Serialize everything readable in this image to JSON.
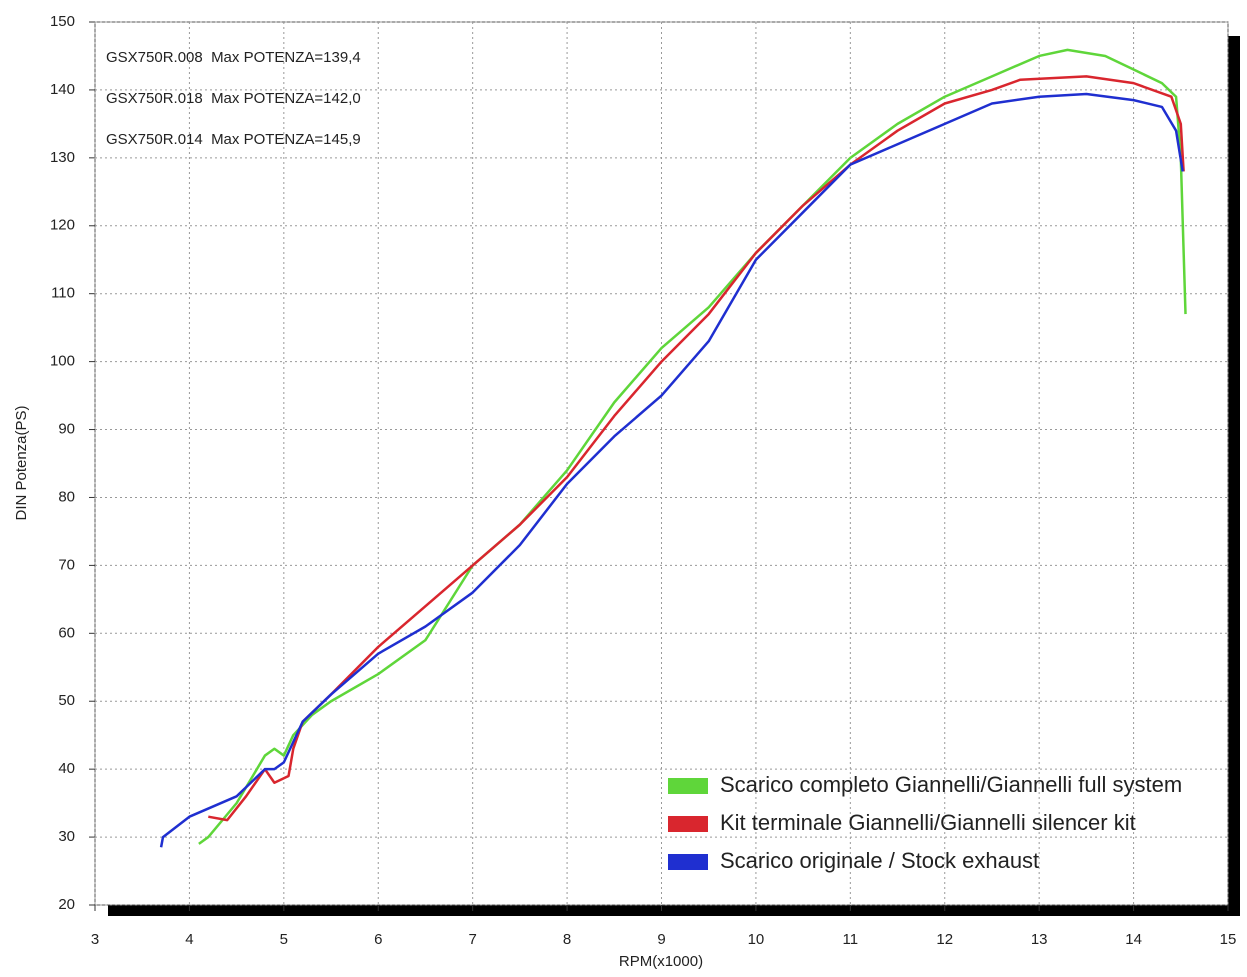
{
  "chart_data": {
    "type": "line",
    "xlabel": "RPM(x1000)",
    "ylabel": "DIN Potenza(PS)",
    "xlim": [
      3,
      15
    ],
    "xticks": [
      3,
      4,
      5,
      6,
      7,
      8,
      9,
      10,
      11,
      12,
      13,
      14,
      15
    ],
    "ylim": [
      20,
      150
    ],
    "yticks": [
      20,
      30,
      40,
      50,
      60,
      70,
      80,
      90,
      100,
      110,
      120,
      130,
      140,
      150
    ],
    "grid": true,
    "legend": "lower right",
    "annotations": [
      {
        "text": "GSX750R.008  Max POTENZA=139,4",
        "color": "#2b3bbd"
      },
      {
        "text": "GSX750R.018  Max POTENZA=142,0",
        "color": "#d9343f"
      },
      {
        "text": "GSX750R.014  Max POTENZA=145,9",
        "color": "#6bd64a"
      }
    ],
    "series": [
      {
        "name": "Scarico completo Giannelli/Giannelli full system",
        "color": "#5fd63a",
        "x": [
          4.1,
          4.2,
          4.5,
          4.8,
          4.9,
          5.0,
          5.1,
          5.3,
          5.5,
          6.0,
          6.5,
          7.0,
          7.5,
          8.0,
          8.5,
          9.0,
          9.5,
          10.0,
          10.5,
          11.0,
          11.5,
          12.0,
          12.5,
          13.0,
          13.3,
          13.7,
          14.0,
          14.3,
          14.45,
          14.5,
          14.55
        ],
        "values": [
          29,
          30,
          35,
          42,
          43,
          42,
          45,
          48,
          50,
          54,
          59,
          70,
          76,
          84,
          94,
          102,
          108,
          116,
          123,
          130,
          135,
          139,
          142,
          145,
          145.9,
          145,
          143,
          141,
          139,
          130,
          107
        ]
      },
      {
        "name": "Kit terminale Giannelli/Giannelli silencer kit",
        "color": "#d9262e",
        "x": [
          4.2,
          4.4,
          4.6,
          4.8,
          4.9,
          5.05,
          5.1,
          5.2,
          5.5,
          6.0,
          6.5,
          7.0,
          7.5,
          8.0,
          8.5,
          9.0,
          9.5,
          10.0,
          10.5,
          11.0,
          11.5,
          12.0,
          12.5,
          12.8,
          13.5,
          14.0,
          14.4,
          14.5,
          14.53
        ],
        "values": [
          33,
          32.5,
          36,
          40,
          38,
          39,
          43,
          47,
          51,
          58,
          64,
          70,
          76,
          83,
          92,
          100,
          107,
          116,
          123,
          129,
          134,
          138,
          140,
          141.5,
          142,
          141,
          139,
          135,
          128
        ]
      },
      {
        "name": "Scarico originale / Stock exhaust",
        "color": "#1f2fd0",
        "x": [
          3.7,
          3.72,
          4.0,
          4.5,
          4.8,
          4.9,
          5.0,
          5.1,
          5.2,
          5.5,
          6.0,
          6.5,
          7.0,
          7.5,
          8.0,
          8.5,
          9.0,
          9.5,
          10.0,
          10.5,
          11.0,
          11.5,
          12.0,
          12.5,
          13.0,
          13.5,
          14.0,
          14.3,
          14.45,
          14.52
        ],
        "values": [
          28.5,
          30,
          33,
          36,
          40,
          40,
          41,
          44,
          47,
          51,
          57,
          61,
          66,
          73,
          82,
          89,
          95,
          103,
          115,
          122,
          129,
          132,
          135,
          138,
          139,
          139.4,
          138.5,
          137.5,
          134,
          128
        ]
      }
    ]
  }
}
